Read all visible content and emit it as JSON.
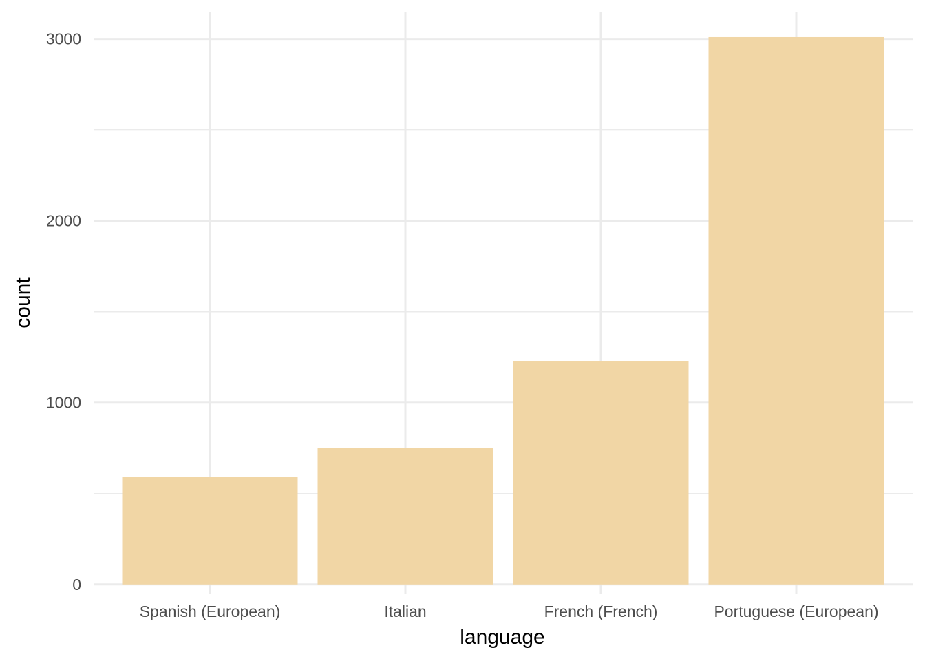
{
  "chart_data": {
    "type": "bar",
    "categories": [
      "Spanish (European)",
      "Italian",
      "French (French)",
      "Portuguese (European)"
    ],
    "values": [
      590,
      750,
      1230,
      3010
    ],
    "xlabel": "language",
    "ylabel": "count",
    "ylim": [
      -50,
      3150
    ],
    "yticks": [
      0,
      1000,
      2000,
      3000
    ],
    "y_minor_ticks": [
      500,
      1500,
      2500
    ],
    "ytick_labels": [
      "0",
      "1000",
      "2000",
      "3000"
    ],
    "grid": true,
    "legend": "none",
    "bar_color": "#f1d6a5",
    "grid_color": "#ebebeb"
  }
}
